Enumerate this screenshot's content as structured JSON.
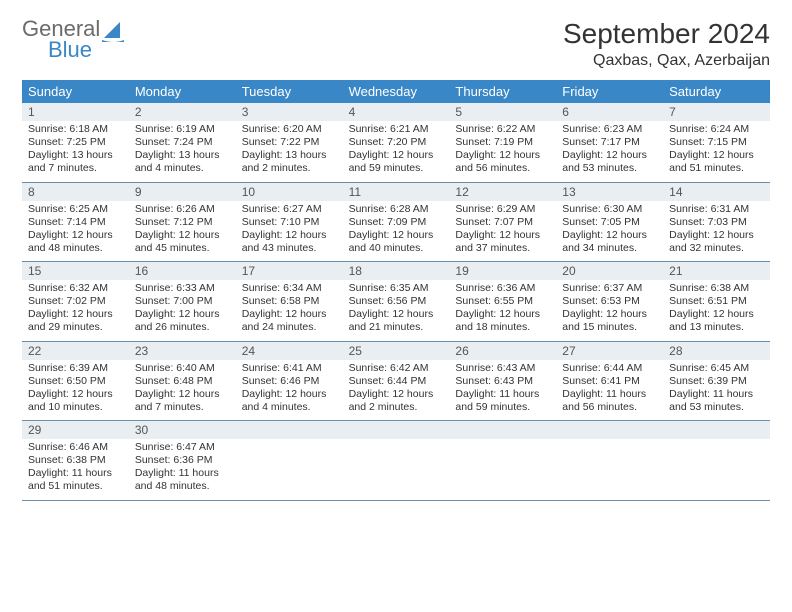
{
  "brand": {
    "name1": "General",
    "name2": "Blue"
  },
  "title": "September 2024",
  "location": "Qaxbas, Qax, Azerbaijan",
  "colors": {
    "header_bg": "#3a87c7",
    "header_text": "#ffffff",
    "daynum_bg": "#e9eef2",
    "row_border": "#6a8da8",
    "text": "#333333",
    "logo_gray": "#6b6b6b",
    "logo_blue": "#3a87c7"
  },
  "day_names": [
    "Sunday",
    "Monday",
    "Tuesday",
    "Wednesday",
    "Thursday",
    "Friday",
    "Saturday"
  ],
  "weeks": [
    [
      {
        "n": "1",
        "sr": "6:18 AM",
        "ss": "7:25 PM",
        "dl": "13 hours and 7 minutes."
      },
      {
        "n": "2",
        "sr": "6:19 AM",
        "ss": "7:24 PM",
        "dl": "13 hours and 4 minutes."
      },
      {
        "n": "3",
        "sr": "6:20 AM",
        "ss": "7:22 PM",
        "dl": "13 hours and 2 minutes."
      },
      {
        "n": "4",
        "sr": "6:21 AM",
        "ss": "7:20 PM",
        "dl": "12 hours and 59 minutes."
      },
      {
        "n": "5",
        "sr": "6:22 AM",
        "ss": "7:19 PM",
        "dl": "12 hours and 56 minutes."
      },
      {
        "n": "6",
        "sr": "6:23 AM",
        "ss": "7:17 PM",
        "dl": "12 hours and 53 minutes."
      },
      {
        "n": "7",
        "sr": "6:24 AM",
        "ss": "7:15 PM",
        "dl": "12 hours and 51 minutes."
      }
    ],
    [
      {
        "n": "8",
        "sr": "6:25 AM",
        "ss": "7:14 PM",
        "dl": "12 hours and 48 minutes."
      },
      {
        "n": "9",
        "sr": "6:26 AM",
        "ss": "7:12 PM",
        "dl": "12 hours and 45 minutes."
      },
      {
        "n": "10",
        "sr": "6:27 AM",
        "ss": "7:10 PM",
        "dl": "12 hours and 43 minutes."
      },
      {
        "n": "11",
        "sr": "6:28 AM",
        "ss": "7:09 PM",
        "dl": "12 hours and 40 minutes."
      },
      {
        "n": "12",
        "sr": "6:29 AM",
        "ss": "7:07 PM",
        "dl": "12 hours and 37 minutes."
      },
      {
        "n": "13",
        "sr": "6:30 AM",
        "ss": "7:05 PM",
        "dl": "12 hours and 34 minutes."
      },
      {
        "n": "14",
        "sr": "6:31 AM",
        "ss": "7:03 PM",
        "dl": "12 hours and 32 minutes."
      }
    ],
    [
      {
        "n": "15",
        "sr": "6:32 AM",
        "ss": "7:02 PM",
        "dl": "12 hours and 29 minutes."
      },
      {
        "n": "16",
        "sr": "6:33 AM",
        "ss": "7:00 PM",
        "dl": "12 hours and 26 minutes."
      },
      {
        "n": "17",
        "sr": "6:34 AM",
        "ss": "6:58 PM",
        "dl": "12 hours and 24 minutes."
      },
      {
        "n": "18",
        "sr": "6:35 AM",
        "ss": "6:56 PM",
        "dl": "12 hours and 21 minutes."
      },
      {
        "n": "19",
        "sr": "6:36 AM",
        "ss": "6:55 PM",
        "dl": "12 hours and 18 minutes."
      },
      {
        "n": "20",
        "sr": "6:37 AM",
        "ss": "6:53 PM",
        "dl": "12 hours and 15 minutes."
      },
      {
        "n": "21",
        "sr": "6:38 AM",
        "ss": "6:51 PM",
        "dl": "12 hours and 13 minutes."
      }
    ],
    [
      {
        "n": "22",
        "sr": "6:39 AM",
        "ss": "6:50 PM",
        "dl": "12 hours and 10 minutes."
      },
      {
        "n": "23",
        "sr": "6:40 AM",
        "ss": "6:48 PM",
        "dl": "12 hours and 7 minutes."
      },
      {
        "n": "24",
        "sr": "6:41 AM",
        "ss": "6:46 PM",
        "dl": "12 hours and 4 minutes."
      },
      {
        "n": "25",
        "sr": "6:42 AM",
        "ss": "6:44 PM",
        "dl": "12 hours and 2 minutes."
      },
      {
        "n": "26",
        "sr": "6:43 AM",
        "ss": "6:43 PM",
        "dl": "11 hours and 59 minutes."
      },
      {
        "n": "27",
        "sr": "6:44 AM",
        "ss": "6:41 PM",
        "dl": "11 hours and 56 minutes."
      },
      {
        "n": "28",
        "sr": "6:45 AM",
        "ss": "6:39 PM",
        "dl": "11 hours and 53 minutes."
      }
    ],
    [
      {
        "n": "29",
        "sr": "6:46 AM",
        "ss": "6:38 PM",
        "dl": "11 hours and 51 minutes."
      },
      {
        "n": "30",
        "sr": "6:47 AM",
        "ss": "6:36 PM",
        "dl": "11 hours and 48 minutes."
      },
      null,
      null,
      null,
      null,
      null
    ]
  ],
  "labels": {
    "sunrise": "Sunrise:",
    "sunset": "Sunset:",
    "daylight": "Daylight:"
  }
}
